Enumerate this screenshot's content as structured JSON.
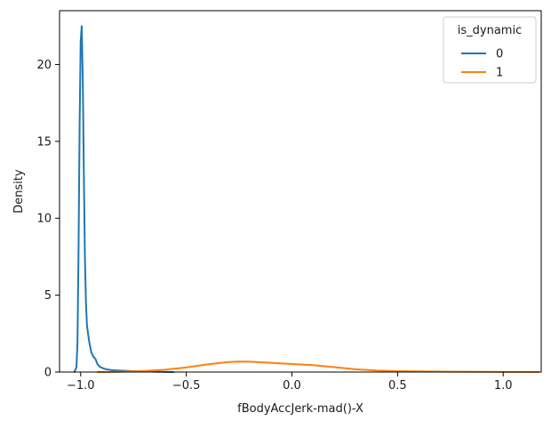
{
  "chart_data": {
    "type": "line",
    "title": "",
    "xlabel": "fBodyAccJerk-mad()-X",
    "ylabel": "Density",
    "xlim": [
      -1.1,
      1.18
    ],
    "ylim": [
      0,
      23.5
    ],
    "x_ticks": [
      -1.0,
      -0.5,
      0.0,
      0.5,
      1.0
    ],
    "x_tick_labels": [
      "−1.0",
      "−0.5",
      "0.0",
      "0.5",
      "1.0"
    ],
    "y_ticks": [
      0,
      5,
      10,
      15,
      20
    ],
    "y_tick_labels": [
      "0",
      "5",
      "10",
      "15",
      "20"
    ],
    "grid": false,
    "legend": {
      "title": "is_dynamic",
      "placement": "top-right",
      "entries": [
        "0",
        "1"
      ]
    },
    "series": [
      {
        "name": "0",
        "color": "#1f77b4",
        "points": [
          [
            -1.03,
            0.0
          ],
          [
            -1.02,
            0.3
          ],
          [
            -1.015,
            2.0
          ],
          [
            -1.01,
            8.0
          ],
          [
            -1.005,
            16.0
          ],
          [
            -1.0,
            21.5
          ],
          [
            -0.995,
            22.5
          ],
          [
            -0.99,
            19.0
          ],
          [
            -0.985,
            13.0
          ],
          [
            -0.98,
            7.5
          ],
          [
            -0.975,
            4.5
          ],
          [
            -0.97,
            3.0
          ],
          [
            -0.96,
            2.0
          ],
          [
            -0.95,
            1.3
          ],
          [
            -0.94,
            1.0
          ],
          [
            -0.93,
            0.85
          ],
          [
            -0.92,
            0.5
          ],
          [
            -0.91,
            0.35
          ],
          [
            -0.9,
            0.28
          ],
          [
            -0.88,
            0.18
          ],
          [
            -0.85,
            0.12
          ],
          [
            -0.8,
            0.09
          ],
          [
            -0.75,
            0.06
          ],
          [
            -0.7,
            0.04
          ],
          [
            -0.65,
            0.02
          ],
          [
            -0.6,
            0.01
          ],
          [
            -0.56,
            0.0
          ]
        ]
      },
      {
        "name": "1",
        "color": "#ff7f0e",
        "points": [
          [
            -0.92,
            0.0
          ],
          [
            -0.85,
            0.01
          ],
          [
            -0.8,
            0.02
          ],
          [
            -0.7,
            0.07
          ],
          [
            -0.6,
            0.15
          ],
          [
            -0.5,
            0.3
          ],
          [
            -0.4,
            0.5
          ],
          [
            -0.3,
            0.65
          ],
          [
            -0.25,
            0.68
          ],
          [
            -0.2,
            0.67
          ],
          [
            -0.1,
            0.6
          ],
          [
            0.0,
            0.52
          ],
          [
            0.1,
            0.45
          ],
          [
            0.2,
            0.32
          ],
          [
            0.3,
            0.18
          ],
          [
            0.4,
            0.1
          ],
          [
            0.5,
            0.06
          ],
          [
            0.6,
            0.04
          ],
          [
            0.7,
            0.03
          ],
          [
            0.8,
            0.02
          ],
          [
            0.9,
            0.015
          ],
          [
            1.0,
            0.01
          ],
          [
            1.1,
            0.005
          ],
          [
            1.17,
            0.0
          ]
        ]
      }
    ]
  }
}
